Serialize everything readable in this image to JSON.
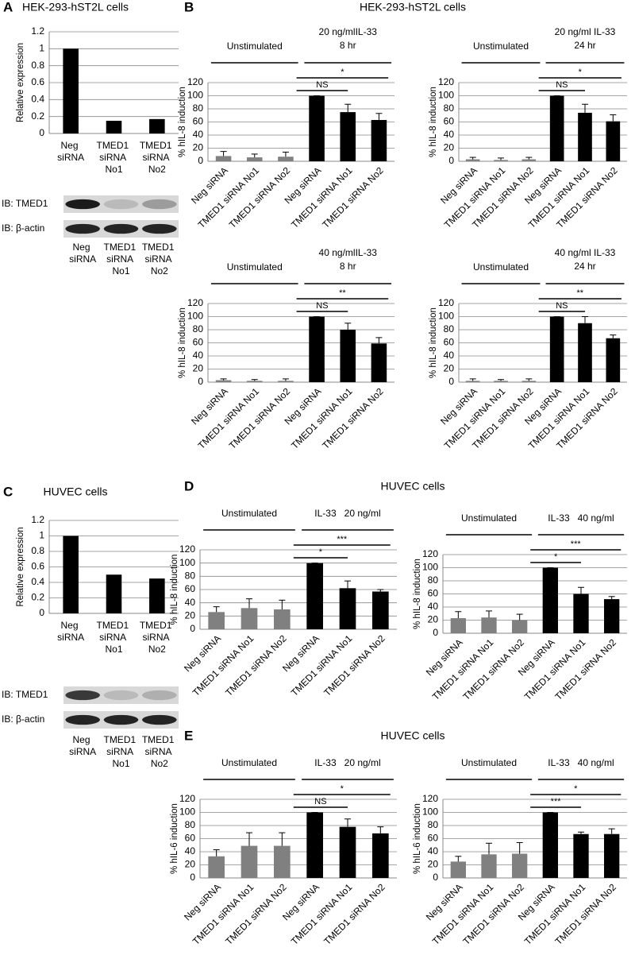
{
  "panels": [
    {
      "letter": "A",
      "title": "HEK-293-hST2L cells"
    },
    {
      "letter": "B",
      "title": "HEK-293-hST2L cells"
    },
    {
      "letter": "C",
      "title": "HUVEC cells"
    },
    {
      "letter": "D",
      "title": "HUVEC cells"
    },
    {
      "letter": "E",
      "title": "HUVEC cells"
    }
  ],
  "blots": [
    {
      "rows": [
        "IB: TMED1",
        "IB: β-actin"
      ],
      "lanes": [
        "Neg siRNA",
        "TMED1 siRNA No1",
        "TMED1 siRNA No2"
      ]
    },
    {
      "rows": [
        "IB: TMED1",
        "IB: β-actin"
      ],
      "lanes": [
        "Neg siRNA",
        "TMED1 siRNA No1",
        "TMED1 siRNA No2"
      ]
    }
  ],
  "chart_data": [
    {
      "type": "bar",
      "ylabel": "Relative expression",
      "categories": [
        "Neg siRNA",
        "TMED1 siRNA No1",
        "TMED1 siRNA No2"
      ],
      "values": [
        1,
        0.15,
        0.17
      ],
      "color": "#000000",
      "ylim": [
        0,
        1.2
      ],
      "yticks": [
        0,
        0.2,
        0.4,
        0.6,
        0.8,
        1,
        1.2
      ],
      "grid": true
    },
    {
      "type": "errorbar",
      "ylabel": "% hIL-8 induction",
      "categories": [
        "Neg siRNA",
        "TMED1 siRNA No1",
        "TMED1 siRNA No2",
        "Neg siRNA",
        "TMED1 siRNA No1",
        "TMED1 siRNA No2"
      ],
      "values": [
        8,
        6,
        7,
        100,
        75,
        63
      ],
      "errors": [
        7,
        5,
        7,
        0,
        12,
        10
      ],
      "colors": [
        "#808080",
        "#808080",
        "#808080",
        "#000000",
        "#000000",
        "#000000"
      ],
      "groups": [
        [
          "Unstimulated"
        ],
        [
          "20 ng/mlIL-33",
          "8 hr"
        ]
      ],
      "significance": [
        "NS",
        "*"
      ],
      "ylim": [
        0,
        120
      ],
      "yticks": [
        0,
        20,
        40,
        60,
        80,
        100,
        120
      ],
      "grid": true
    },
    {
      "type": "errorbar",
      "ylabel": "% hIL-8 induction",
      "categories": [
        "Neg siRNA",
        "TMED1 siRNA No1",
        "TMED1 siRNA No2",
        "Neg siRNA",
        "TMED1 siRNA No1",
        "TMED1 siRNA No2"
      ],
      "values": [
        3,
        2,
        3,
        100,
        74,
        61
      ],
      "errors": [
        3,
        3,
        3,
        0,
        13,
        10
      ],
      "colors": [
        "#808080",
        "#808080",
        "#808080",
        "#000000",
        "#000000",
        "#000000"
      ],
      "groups": [
        [
          "Unstimulated"
        ],
        [
          "20 ng/ml IL-33",
          "24 hr"
        ]
      ],
      "significance": [
        "NS",
        "*"
      ],
      "ylim": [
        0,
        120
      ],
      "yticks": [
        0,
        20,
        40,
        60,
        80,
        100,
        120
      ],
      "grid": true
    },
    {
      "type": "errorbar",
      "ylabel": "% hIL-8 induction",
      "categories": [
        "Neg siRNA",
        "TMED1 siRNA No1",
        "TMED1 siRNA No2",
        "Neg siRNA",
        "TMED1 siRNA No1",
        "TMED1 siRNA No2"
      ],
      "values": [
        3,
        2,
        2,
        100,
        80,
        59
      ],
      "errors": [
        2,
        2,
        3,
        0,
        10,
        9
      ],
      "colors": [
        "#808080",
        "#808080",
        "#808080",
        "#000000",
        "#000000",
        "#000000"
      ],
      "groups": [
        [
          "Unstimulated"
        ],
        [
          "40 ng/mlIL-33",
          "8 hr"
        ]
      ],
      "significance": [
        "NS",
        "**"
      ],
      "ylim": [
        0,
        120
      ],
      "yticks": [
        0,
        20,
        40,
        60,
        80,
        100,
        120
      ],
      "grid": true
    },
    {
      "type": "errorbar",
      "ylabel": "% hIL-8 induction",
      "categories": [
        "Neg siRNA",
        "TMED1 siRNA No1",
        "TMED1 siRNA No2",
        "Neg siRNA",
        "TMED1 siRNA No1",
        "TMED1 siRNA No2"
      ],
      "values": [
        2,
        2,
        2,
        100,
        90,
        67
      ],
      "errors": [
        3,
        2,
        3,
        0,
        10,
        5
      ],
      "colors": [
        "#808080",
        "#808080",
        "#808080",
        "#000000",
        "#000000",
        "#000000"
      ],
      "groups": [
        [
          "Unstimulated"
        ],
        [
          "40 ng/ml IL-33",
          "24 hr"
        ]
      ],
      "significance": [
        "NS",
        "**"
      ],
      "ylim": [
        0,
        120
      ],
      "yticks": [
        0,
        20,
        40,
        60,
        80,
        100,
        120
      ],
      "grid": true
    },
    {
      "type": "bar",
      "ylabel": "Relative expression",
      "categories": [
        "Neg siRNA",
        "TMED1 siRNA No1",
        "TMED1 siRNA No2"
      ],
      "values": [
        1,
        0.5,
        0.45
      ],
      "color": "#000000",
      "ylim": [
        0,
        1.2
      ],
      "yticks": [
        0,
        0.2,
        0.4,
        0.6,
        0.8,
        1,
        1.2
      ],
      "grid": true
    },
    {
      "type": "errorbar",
      "ylabel": "% hIL-8 induction",
      "categories": [
        "Neg siRNA",
        "TMED1 siRNA No1",
        "TMED1 siRNA No2",
        "Neg siRNA",
        "TMED1 siRNA No1",
        "TMED1 siRNA No2"
      ],
      "values": [
        26,
        32,
        30,
        100,
        62,
        57
      ],
      "errors": [
        8,
        14,
        14,
        0,
        11,
        3
      ],
      "colors": [
        "#808080",
        "#808080",
        "#808080",
        "#000000",
        "#000000",
        "#000000"
      ],
      "groups": [
        [
          "Unstimulated"
        ],
        [
          "IL-33   20 ng/ml"
        ]
      ],
      "significance": [
        "*",
        "***"
      ],
      "ylim": [
        0,
        120
      ],
      "yticks": [
        0,
        20,
        40,
        60,
        80,
        100,
        120
      ],
      "grid": true
    },
    {
      "type": "errorbar",
      "ylabel": "% hIL-8 induction",
      "categories": [
        "Neg siRNA",
        "TMED1 siRNA No1",
        "TMED1 siRNA No2",
        "Neg siRNA",
        "TMED1 siRNA No1",
        "TMED1 siRNA No2"
      ],
      "values": [
        23,
        24,
        20,
        100,
        60,
        52
      ],
      "errors": [
        10,
        10,
        9,
        0,
        10,
        4
      ],
      "colors": [
        "#808080",
        "#808080",
        "#808080",
        "#000000",
        "#000000",
        "#000000"
      ],
      "groups": [
        [
          "Unstimulated"
        ],
        [
          "IL-33   40 ng/ml"
        ]
      ],
      "significance": [
        "*",
        "***"
      ],
      "ylim": [
        0,
        120
      ],
      "yticks": [
        0,
        20,
        40,
        60,
        80,
        100,
        120
      ],
      "grid": true
    },
    {
      "type": "errorbar",
      "ylabel": "% hIL-6 induction",
      "categories": [
        "Neg siRNA",
        "TMED1 siRNA No1",
        "TMED1 siRNA No2",
        "Neg siRNA",
        "TMED1 siRNA No1",
        "TMED1 siRNA No2"
      ],
      "values": [
        33,
        49,
        49,
        100,
        78,
        68
      ],
      "errors": [
        10,
        20,
        20,
        0,
        12,
        10
      ],
      "colors": [
        "#808080",
        "#808080",
        "#808080",
        "#000000",
        "#000000",
        "#000000"
      ],
      "groups": [
        [
          "Unstimulated"
        ],
        [
          "IL-33   20 ng/ml"
        ]
      ],
      "significance": [
        "NS",
        "*"
      ],
      "ylim": [
        0,
        120
      ],
      "yticks": [
        0,
        20,
        40,
        60,
        80,
        100,
        120
      ],
      "grid": true
    },
    {
      "type": "errorbar",
      "ylabel": "% hIL-6 induction",
      "categories": [
        "Neg siRNA",
        "TMED1 siRNA No1",
        "TMED1 siRNA No2",
        "Neg siRNA",
        "TMED1 siRNA No1",
        "TMED1 siRNA No2"
      ],
      "values": [
        25,
        36,
        37,
        100,
        67,
        67
      ],
      "errors": [
        8,
        17,
        17,
        0,
        3,
        8
      ],
      "colors": [
        "#808080",
        "#808080",
        "#808080",
        "#000000",
        "#000000",
        "#000000"
      ],
      "groups": [
        [
          "Unstimulated"
        ],
        [
          "IL-33   40 ng/ml"
        ]
      ],
      "significance": [
        "***",
        "*"
      ],
      "ylim": [
        0,
        120
      ],
      "yticks": [
        0,
        20,
        40,
        60,
        80,
        100,
        120
      ],
      "grid": true
    }
  ]
}
